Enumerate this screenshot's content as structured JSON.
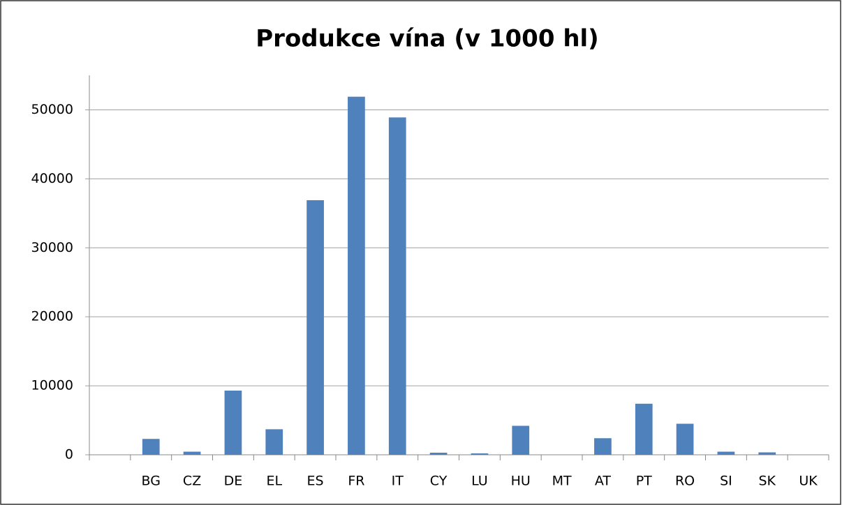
{
  "chart_data": {
    "type": "bar",
    "title": "Produkce vína (v 1000 hl)",
    "categories": [
      null,
      "BG",
      "CZ",
      "DE",
      "EL",
      "ES",
      "FR",
      "IT",
      "CY",
      "LU",
      "HU",
      "MT",
      "AT",
      "PT",
      "RO",
      "SI",
      "SK",
      "UK"
    ],
    "values": [
      null,
      2300,
      450,
      9300,
      3700,
      36900,
      51900,
      48900,
      300,
      200,
      4200,
      0,
      2400,
      7400,
      4500,
      450,
      350,
      0
    ],
    "color": "#4f81bd",
    "ylim": [
      0,
      55000
    ],
    "yticks": [
      0,
      10000,
      20000,
      30000,
      40000,
      50000
    ],
    "grid": true
  }
}
